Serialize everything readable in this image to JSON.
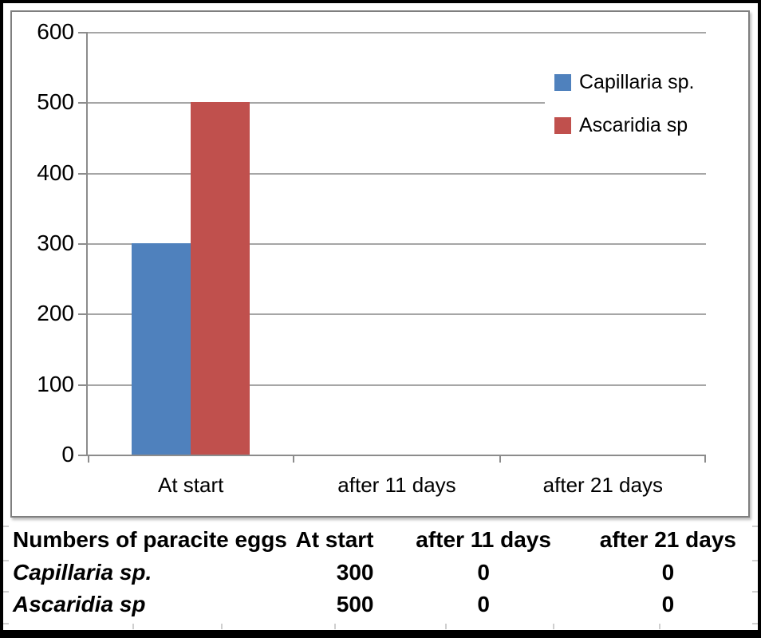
{
  "chart_data": {
    "type": "bar",
    "title": "",
    "xlabel": "",
    "ylabel": "",
    "categories": [
      "At start",
      "after 11 days",
      "after 21 days"
    ],
    "series": [
      {
        "name": "Capillaria sp.",
        "color": "#4f81bd",
        "values": [
          300,
          0,
          0
        ]
      },
      {
        "name": "Ascaridia sp",
        "color": "#c0504d",
        "values": [
          500,
          0,
          0
        ]
      }
    ],
    "ylim": [
      0,
      600
    ],
    "yticks": [
      0,
      100,
      200,
      300,
      400,
      500,
      600
    ],
    "grid": true,
    "legend_position": "top-right"
  },
  "table": {
    "header": [
      "Numbers of paracite eggs",
      "At start",
      "after 11 days",
      "after 21 days"
    ],
    "rows": [
      {
        "label": "Capillaria sp.",
        "values": [
          "300",
          "0",
          "0"
        ]
      },
      {
        "label": "Ascaridia sp",
        "values": [
          "500",
          "0",
          "0"
        ]
      }
    ]
  },
  "colors": {
    "series_blue": "#4f81bd",
    "series_red": "#c0504d",
    "gridline": "#a6a6a6",
    "axis": "#8c8c8c",
    "chart_border": "#7f7f7f",
    "outer_border": "#000000",
    "background": "#ffffff"
  }
}
